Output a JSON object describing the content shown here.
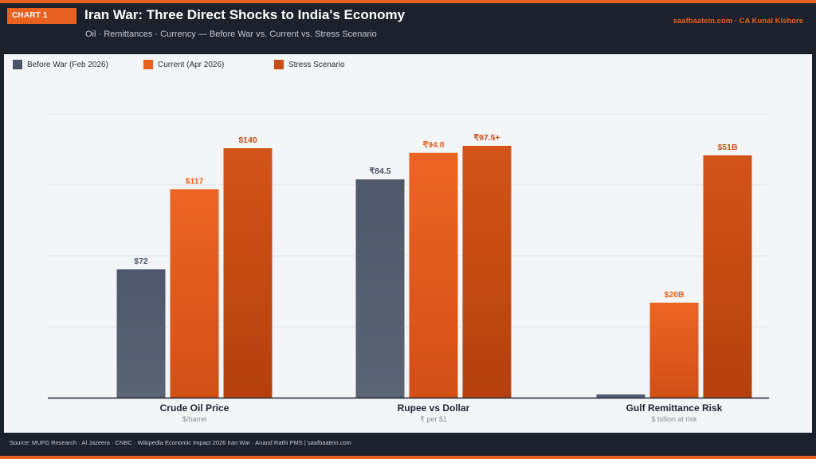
{
  "header": {
    "tag": "CHART 1",
    "title": "Iran War: Three Direct Shocks to India's Economy",
    "subtitle": "Oil · Remittances · Currency — Before War vs. Current vs. Stress Scenario",
    "credit": "saafbaatein.com  ·  CA Kunal Kishore"
  },
  "footer": {
    "source": "Source: MUFG Research · Al Jazeera · CNBC · Wikipedia Economic Impact 2026 Iran War · Anand Rathi PMS  |  saafbaatein.com"
  },
  "colors": {
    "before": "#4b5566",
    "current": "#e8611f",
    "stress": "#c94e16",
    "accent": "#e8611f",
    "background": "#1d212b"
  },
  "chart_data": {
    "type": "bar",
    "categories": [
      "Crude Oil Price",
      "Rupee vs Dollar",
      "Gulf Remittance Risk"
    ],
    "category_units": [
      "$/barrel",
      "₹ per $1",
      "$ billion at risk"
    ],
    "series": [
      {
        "name": "Before War (Feb 2026)",
        "values": [
          72,
          84.5,
          0
        ],
        "labels": [
          "$72",
          "₹84.5",
          ""
        ]
      },
      {
        "name": "Current (Apr 2026)",
        "values": [
          117,
          94.8,
          20
        ],
        "labels": [
          "$117",
          "₹94.8",
          "$20B"
        ]
      },
      {
        "name": "Stress Scenario",
        "values": [
          140,
          97.5,
          51
        ],
        "labels": [
          "$140",
          "₹97.5+",
          "$51B"
        ]
      }
    ],
    "legend_position": "top-left",
    "grid": true
  }
}
